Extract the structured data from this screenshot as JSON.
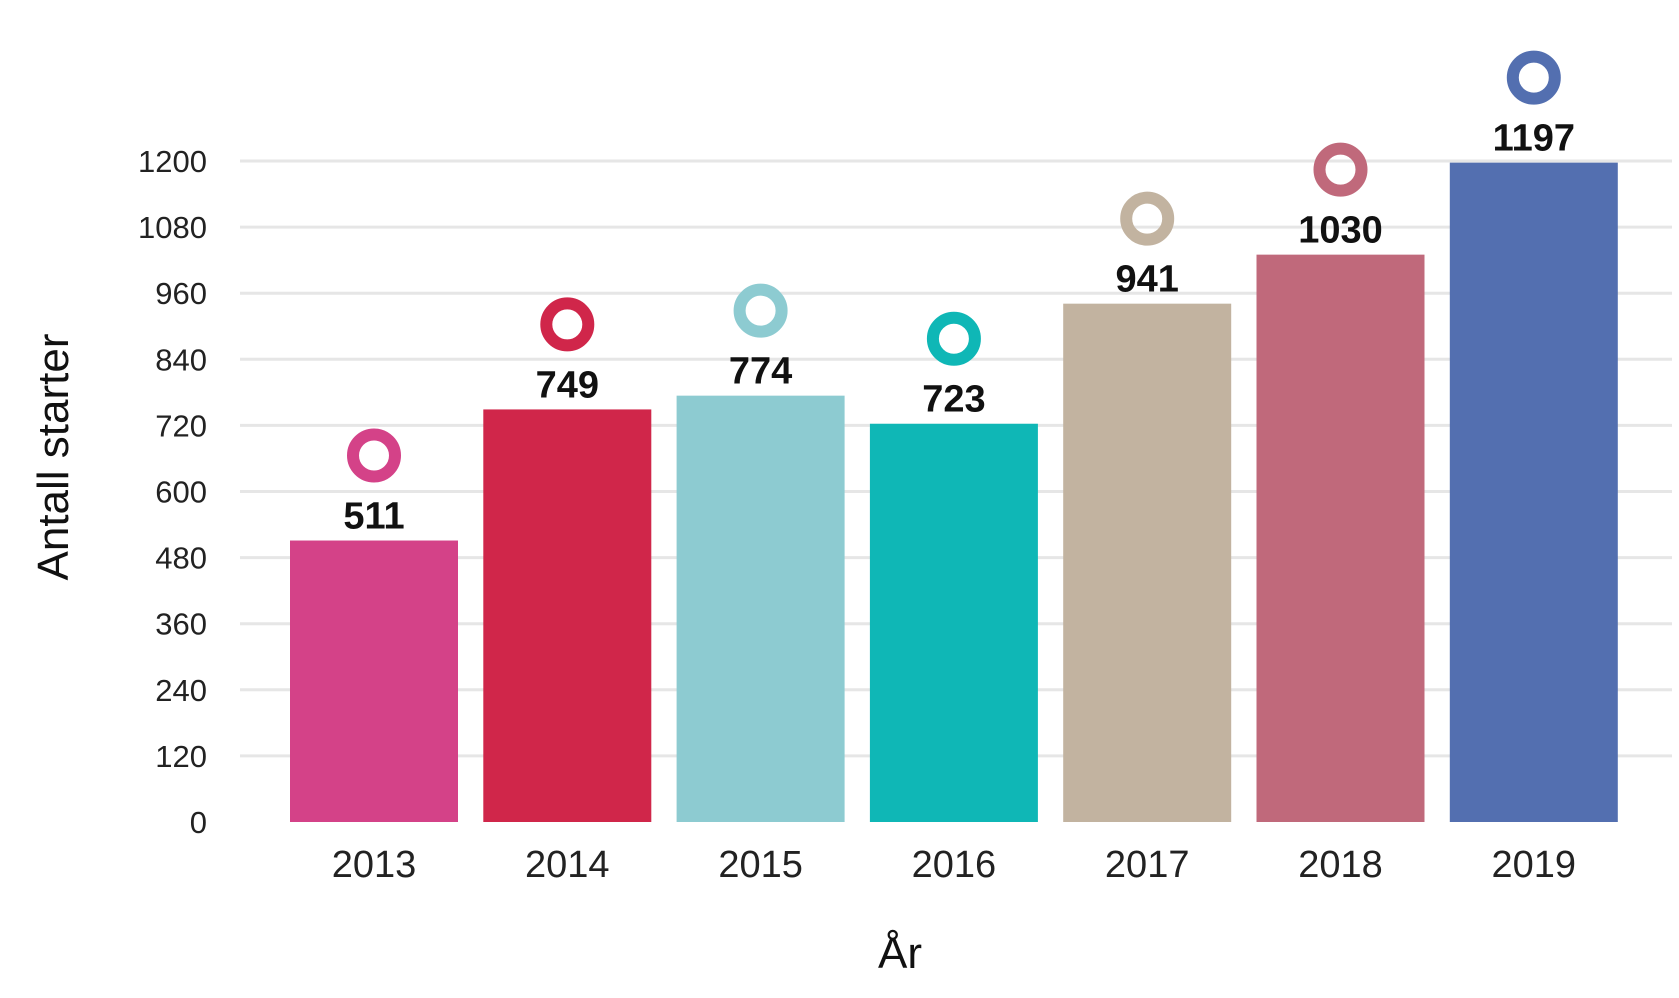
{
  "chart_data": {
    "type": "bar",
    "title": "",
    "xlabel": "År",
    "ylabel": "Antall starter",
    "ylim": [
      0,
      1200
    ],
    "yticks": [
      0,
      120,
      240,
      360,
      480,
      600,
      720,
      840,
      960,
      1080,
      1200
    ],
    "grid": true,
    "legend": "none",
    "categories": [
      "2013",
      "2014",
      "2015",
      "2016",
      "2017",
      "2018",
      "2019"
    ],
    "values": [
      511,
      749,
      774,
      723,
      941,
      1030,
      1197
    ],
    "colors": [
      "#d44288",
      "#d0264a",
      "#8dcbd1",
      "#0fb7b6",
      "#c2b3a0",
      "#c0697b",
      "#536fb0"
    ],
    "markers": "ring"
  }
}
